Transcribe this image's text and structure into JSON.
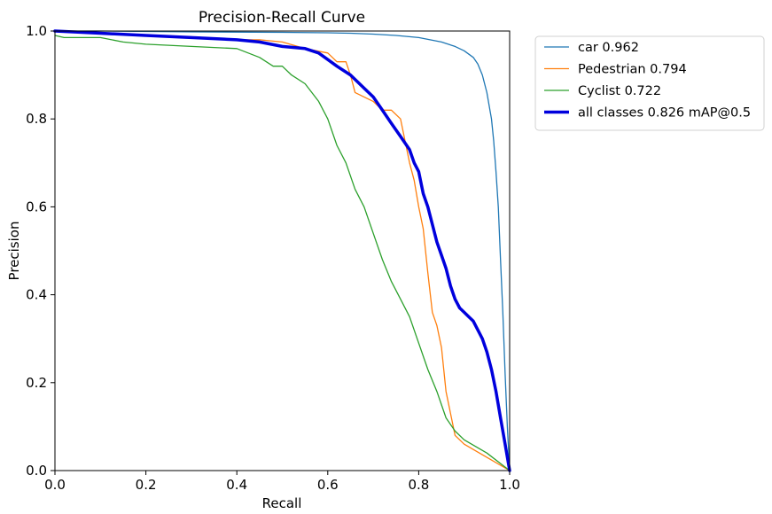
{
  "chart_data": {
    "type": "line",
    "title": "Precision-Recall Curve",
    "xlabel": "Recall",
    "ylabel": "Precision",
    "xlim": [
      0,
      1
    ],
    "ylim": [
      0,
      1
    ],
    "xticks": [
      "0.0",
      "0.2",
      "0.4",
      "0.6",
      "0.8",
      "1.0"
    ],
    "yticks": [
      "0.0",
      "0.2",
      "0.4",
      "0.6",
      "0.8",
      "1.0"
    ],
    "legend_position": "outside-top-right",
    "series": [
      {
        "name": "car",
        "label": "car 0.962",
        "color": "#1f77b4",
        "width": "thin",
        "x": [
          0.0,
          0.1,
          0.3,
          0.5,
          0.6,
          0.65,
          0.7,
          0.75,
          0.8,
          0.85,
          0.88,
          0.9,
          0.92,
          0.93,
          0.94,
          0.95,
          0.96,
          0.965,
          0.97,
          0.975,
          0.98,
          0.985,
          0.99,
          0.995,
          1.0
        ],
        "y": [
          1.0,
          1.0,
          0.998,
          0.997,
          0.996,
          0.995,
          0.993,
          0.99,
          0.985,
          0.975,
          0.965,
          0.955,
          0.94,
          0.925,
          0.9,
          0.86,
          0.8,
          0.75,
          0.68,
          0.6,
          0.48,
          0.36,
          0.22,
          0.1,
          0.0
        ]
      },
      {
        "name": "Pedestrian",
        "label": "Pedestrian 0.794",
        "color": "#ff7f0e",
        "width": "thin",
        "x": [
          0.0,
          0.1,
          0.2,
          0.3,
          0.4,
          0.45,
          0.5,
          0.55,
          0.6,
          0.62,
          0.64,
          0.65,
          0.66,
          0.68,
          0.7,
          0.72,
          0.74,
          0.76,
          0.77,
          0.78,
          0.79,
          0.8,
          0.81,
          0.82,
          0.83,
          0.84,
          0.85,
          0.86,
          0.88,
          0.9,
          0.95,
          1.0
        ],
        "y": [
          1.0,
          0.995,
          0.99,
          0.985,
          0.98,
          0.98,
          0.975,
          0.96,
          0.95,
          0.93,
          0.93,
          0.9,
          0.86,
          0.85,
          0.84,
          0.82,
          0.82,
          0.8,
          0.75,
          0.7,
          0.66,
          0.6,
          0.55,
          0.45,
          0.36,
          0.33,
          0.28,
          0.18,
          0.08,
          0.06,
          0.03,
          0.0
        ]
      },
      {
        "name": "Cyclist",
        "label": "Cyclist 0.722",
        "color": "#2ca02c",
        "width": "thin",
        "x": [
          0.0,
          0.02,
          0.1,
          0.15,
          0.2,
          0.3,
          0.4,
          0.45,
          0.48,
          0.5,
          0.52,
          0.55,
          0.58,
          0.6,
          0.62,
          0.64,
          0.66,
          0.68,
          0.7,
          0.72,
          0.74,
          0.76,
          0.78,
          0.8,
          0.82,
          0.84,
          0.86,
          0.88,
          0.9,
          0.95,
          1.0
        ],
        "y": [
          0.99,
          0.985,
          0.985,
          0.975,
          0.97,
          0.965,
          0.96,
          0.94,
          0.92,
          0.92,
          0.9,
          0.88,
          0.84,
          0.8,
          0.74,
          0.7,
          0.64,
          0.6,
          0.54,
          0.48,
          0.43,
          0.39,
          0.35,
          0.29,
          0.23,
          0.18,
          0.12,
          0.09,
          0.07,
          0.04,
          0.0
        ]
      },
      {
        "name": "all classes",
        "label": "all classes 0.826 mAP@0.5",
        "color": "#0000dd",
        "width": "thick",
        "x": [
          0.0,
          0.1,
          0.2,
          0.3,
          0.4,
          0.45,
          0.5,
          0.55,
          0.58,
          0.6,
          0.62,
          0.65,
          0.68,
          0.7,
          0.72,
          0.74,
          0.76,
          0.78,
          0.79,
          0.8,
          0.81,
          0.82,
          0.83,
          0.84,
          0.85,
          0.86,
          0.87,
          0.88,
          0.89,
          0.9,
          0.91,
          0.92,
          0.93,
          0.94,
          0.95,
          0.96,
          0.97,
          0.98,
          0.99,
          1.0
        ],
        "y": [
          1.0,
          0.995,
          0.99,
          0.985,
          0.98,
          0.975,
          0.965,
          0.96,
          0.95,
          0.935,
          0.92,
          0.9,
          0.87,
          0.85,
          0.82,
          0.79,
          0.76,
          0.73,
          0.7,
          0.68,
          0.63,
          0.6,
          0.56,
          0.52,
          0.49,
          0.46,
          0.42,
          0.39,
          0.37,
          0.36,
          0.35,
          0.34,
          0.32,
          0.3,
          0.27,
          0.23,
          0.18,
          0.12,
          0.06,
          0.0
        ]
      }
    ]
  }
}
